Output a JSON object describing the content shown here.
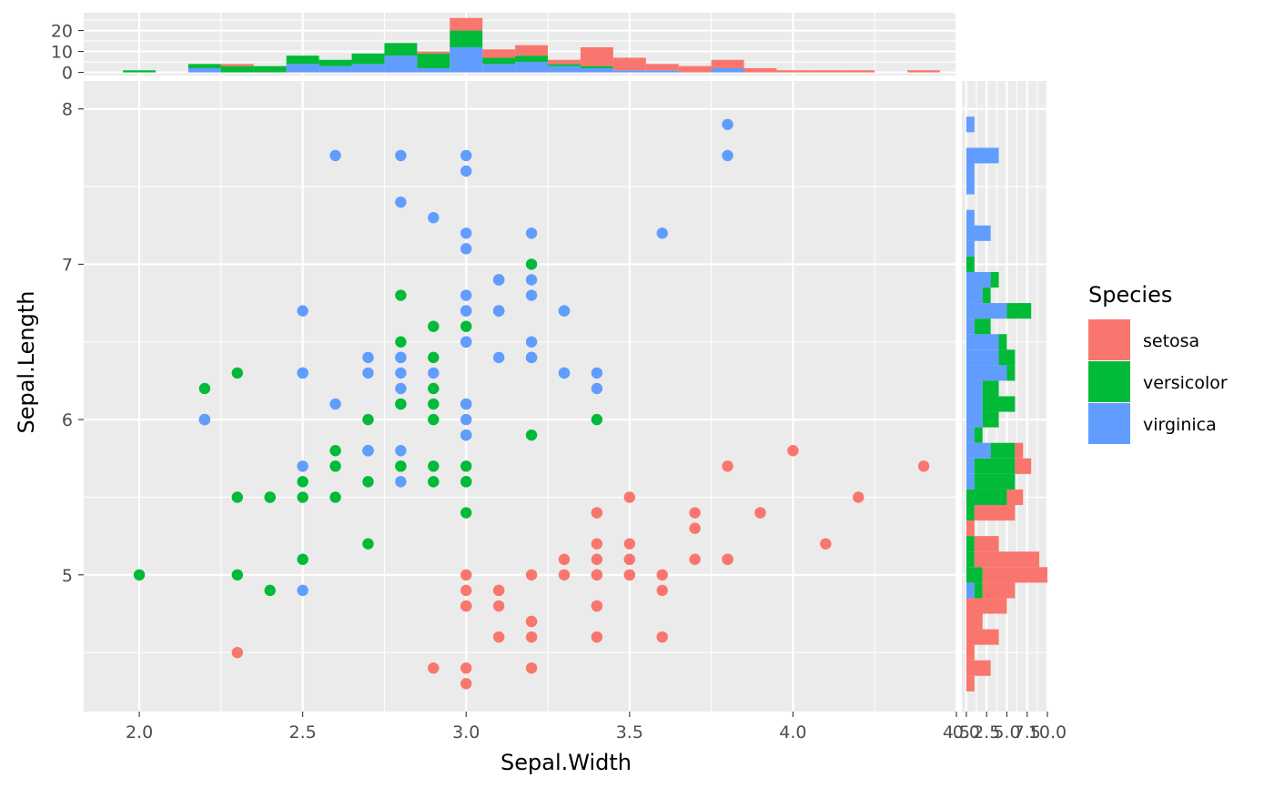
{
  "chart_data": [
    {
      "panel": "main",
      "type": "scatter",
      "xlabel": "Sepal.Width",
      "ylabel": "Sepal.Length",
      "xlim": [
        1.83,
        4.5
      ],
      "ylim": [
        4.12,
        8.18
      ],
      "x_ticks": [
        "2.0",
        "2.5",
        "3.0",
        "3.5",
        "4.0",
        "4.5"
      ],
      "x_tick_values": [
        2.0,
        2.5,
        3.0,
        3.5,
        4.0,
        4.5
      ],
      "y_ticks": [
        "5",
        "6",
        "7",
        "8"
      ],
      "y_tick_values": [
        5,
        6,
        7,
        8
      ],
      "grid": true,
      "series": [
        {
          "name": "setosa",
          "points": [
            [
              3.5,
              5.1
            ],
            [
              3.0,
              4.9
            ],
            [
              3.2,
              4.7
            ],
            [
              3.1,
              4.6
            ],
            [
              3.6,
              5.0
            ],
            [
              3.9,
              5.4
            ],
            [
              3.4,
              4.6
            ],
            [
              3.4,
              5.0
            ],
            [
              2.9,
              4.4
            ],
            [
              3.1,
              4.9
            ],
            [
              3.7,
              5.4
            ],
            [
              3.4,
              4.8
            ],
            [
              3.0,
              4.8
            ],
            [
              3.0,
              4.3
            ],
            [
              4.0,
              5.8
            ],
            [
              4.4,
              5.7
            ],
            [
              3.9,
              5.4
            ],
            [
              3.5,
              5.1
            ],
            [
              3.8,
              5.7
            ],
            [
              3.8,
              5.1
            ],
            [
              3.4,
              5.4
            ],
            [
              3.7,
              5.1
            ],
            [
              3.6,
              4.6
            ],
            [
              3.3,
              5.1
            ],
            [
              3.4,
              4.8
            ],
            [
              3.0,
              5.0
            ],
            [
              3.4,
              5.0
            ],
            [
              3.5,
              5.2
            ],
            [
              3.4,
              5.2
            ],
            [
              3.2,
              4.7
            ],
            [
              3.1,
              4.8
            ],
            [
              3.4,
              5.4
            ],
            [
              4.1,
              5.2
            ],
            [
              4.2,
              5.5
            ],
            [
              3.1,
              4.9
            ],
            [
              3.2,
              5.0
            ],
            [
              3.5,
              5.5
            ],
            [
              3.6,
              4.9
            ],
            [
              3.0,
              4.4
            ],
            [
              3.4,
              5.1
            ],
            [
              3.5,
              5.0
            ],
            [
              2.3,
              4.5
            ],
            [
              3.2,
              4.4
            ],
            [
              3.5,
              5.0
            ],
            [
              3.8,
              5.1
            ],
            [
              3.0,
              4.8
            ],
            [
              3.8,
              5.1
            ],
            [
              3.2,
              4.6
            ],
            [
              3.7,
              5.3
            ],
            [
              3.3,
              5.0
            ]
          ]
        },
        {
          "name": "versicolor",
          "points": [
            [
              3.2,
              7.0
            ],
            [
              3.2,
              6.4
            ],
            [
              3.1,
              6.9
            ],
            [
              2.3,
              5.5
            ],
            [
              2.8,
              6.5
            ],
            [
              2.8,
              5.7
            ],
            [
              3.3,
              6.3
            ],
            [
              2.4,
              4.9
            ],
            [
              2.9,
              6.6
            ],
            [
              2.7,
              5.2
            ],
            [
              2.0,
              5.0
            ],
            [
              3.0,
              5.9
            ],
            [
              2.2,
              6.0
            ],
            [
              2.9,
              6.1
            ],
            [
              2.9,
              5.6
            ],
            [
              3.1,
              6.7
            ],
            [
              3.0,
              5.6
            ],
            [
              2.7,
              5.8
            ],
            [
              2.2,
              6.2
            ],
            [
              2.5,
              5.6
            ],
            [
              3.2,
              5.9
            ],
            [
              2.8,
              6.1
            ],
            [
              2.5,
              6.3
            ],
            [
              2.8,
              6.1
            ],
            [
              2.9,
              6.4
            ],
            [
              3.0,
              6.6
            ],
            [
              2.8,
              6.8
            ],
            [
              3.0,
              6.7
            ],
            [
              2.9,
              6.0
            ],
            [
              2.6,
              5.7
            ],
            [
              2.4,
              5.5
            ],
            [
              2.4,
              5.5
            ],
            [
              2.7,
              5.8
            ],
            [
              2.7,
              6.0
            ],
            [
              3.0,
              5.4
            ],
            [
              3.4,
              6.0
            ],
            [
              3.1,
              6.7
            ],
            [
              2.3,
              6.3
            ],
            [
              3.0,
              5.6
            ],
            [
              2.5,
              5.5
            ],
            [
              2.6,
              5.5
            ],
            [
              3.0,
              6.1
            ],
            [
              2.6,
              5.8
            ],
            [
              2.3,
              5.0
            ],
            [
              2.7,
              5.6
            ],
            [
              3.0,
              5.7
            ],
            [
              2.9,
              5.7
            ],
            [
              2.9,
              6.2
            ],
            [
              2.5,
              5.1
            ],
            [
              2.8,
              5.7
            ]
          ]
        },
        {
          "name": "virginica",
          "points": [
            [
              3.3,
              6.3
            ],
            [
              2.7,
              5.8
            ],
            [
              3.0,
              7.1
            ],
            [
              2.9,
              6.3
            ],
            [
              3.0,
              6.5
            ],
            [
              3.0,
              7.6
            ],
            [
              2.5,
              4.9
            ],
            [
              2.9,
              7.3
            ],
            [
              2.5,
              6.7
            ],
            [
              3.6,
              7.2
            ],
            [
              3.2,
              6.5
            ],
            [
              2.7,
              6.4
            ],
            [
              3.0,
              6.8
            ],
            [
              2.5,
              5.7
            ],
            [
              2.8,
              5.8
            ],
            [
              3.2,
              6.4
            ],
            [
              3.0,
              6.5
            ],
            [
              3.8,
              7.7
            ],
            [
              2.6,
              7.7
            ],
            [
              2.2,
              6.0
            ],
            [
              3.2,
              6.9
            ],
            [
              2.8,
              5.6
            ],
            [
              2.8,
              7.7
            ],
            [
              2.7,
              6.3
            ],
            [
              3.3,
              6.7
            ],
            [
              3.2,
              7.2
            ],
            [
              2.8,
              6.2
            ],
            [
              3.0,
              6.1
            ],
            [
              2.8,
              6.4
            ],
            [
              3.0,
              7.2
            ],
            [
              2.8,
              7.4
            ],
            [
              3.8,
              7.9
            ],
            [
              2.8,
              6.4
            ],
            [
              2.8,
              6.3
            ],
            [
              2.6,
              6.1
            ],
            [
              3.0,
              7.7
            ],
            [
              3.4,
              6.3
            ],
            [
              3.1,
              6.4
            ],
            [
              3.0,
              6.0
            ],
            [
              3.1,
              6.9
            ],
            [
              3.1,
              6.7
            ],
            [
              3.1,
              6.9
            ],
            [
              2.7,
              5.8
            ],
            [
              3.2,
              6.8
            ],
            [
              3.3,
              6.7
            ],
            [
              3.0,
              6.7
            ],
            [
              2.5,
              6.3
            ],
            [
              3.0,
              6.5
            ],
            [
              3.4,
              6.2
            ],
            [
              3.0,
              5.9
            ]
          ]
        }
      ]
    },
    {
      "panel": "top-marginal",
      "type": "bar",
      "stacked": true,
      "bin_width": 0.1,
      "y_ticks": [
        "0",
        "10",
        "20"
      ],
      "y_tick_values": [
        0,
        10,
        20
      ],
      "ylim": [
        -1.5,
        28.5
      ],
      "bin_starts": [
        1.95,
        2.05,
        2.15,
        2.25,
        2.35,
        2.45,
        2.55,
        2.65,
        2.75,
        2.85,
        2.95,
        3.05,
        3.15,
        3.25,
        3.35,
        3.45,
        3.55,
        3.65,
        3.75,
        3.85,
        3.95,
        4.05,
        4.15,
        4.25,
        4.35
      ],
      "series": [
        {
          "name": "setosa",
          "values": [
            0,
            0,
            0,
            1,
            0,
            0,
            0,
            0,
            0,
            1,
            6,
            4,
            5,
            2,
            9,
            6,
            3,
            3,
            4,
            2,
            1,
            1,
            1,
            0,
            1
          ]
        },
        {
          "name": "versicolor",
          "values": [
            1,
            0,
            2,
            3,
            3,
            4,
            3,
            5,
            6,
            7,
            8,
            3,
            3,
            1,
            1,
            0,
            0,
            0,
            0,
            0,
            0,
            0,
            0,
            0,
            0
          ]
        },
        {
          "name": "virginica",
          "values": [
            0,
            0,
            2,
            0,
            0,
            4,
            3,
            4,
            8,
            2,
            12,
            4,
            5,
            3,
            2,
            1,
            1,
            0,
            2,
            0,
            0,
            0,
            0,
            0,
            0
          ]
        }
      ]
    },
    {
      "panel": "right-marginal",
      "type": "bar",
      "orientation": "horizontal",
      "stacked": true,
      "bin_width": 0.1,
      "x_ticks": [
        "0.0",
        "2.5",
        "5.0",
        "7.5",
        "10.0"
      ],
      "x_tick_values": [
        0,
        2.5,
        5.0,
        7.5,
        10.0
      ],
      "xlim": [
        -0.55,
        10.0
      ],
      "bin_starts": [
        4.25,
        4.35,
        4.45,
        4.55,
        4.65,
        4.75,
        4.85,
        4.95,
        5.05,
        5.15,
        5.25,
        5.35,
        5.45,
        5.55,
        5.65,
        5.75,
        5.85,
        5.95,
        6.05,
        6.15,
        6.25,
        6.35,
        6.45,
        6.55,
        6.65,
        6.75,
        6.85,
        6.95,
        7.05,
        7.15,
        7.25,
        7.35,
        7.45,
        7.55,
        7.65,
        7.75,
        7.85
      ],
      "series": [
        {
          "name": "setosa",
          "values": [
            1,
            3,
            1,
            4,
            2,
            5,
            4,
            8,
            8,
            3,
            1,
            5,
            2,
            0,
            2,
            1,
            0,
            0,
            0,
            0,
            0,
            0,
            0,
            0,
            0,
            0,
            0,
            0,
            0,
            0,
            0,
            0,
            0,
            0,
            0,
            0,
            0
          ]
        },
        {
          "name": "versicolor",
          "values": [
            0,
            0,
            0,
            0,
            0,
            0,
            1,
            2,
            1,
            1,
            0,
            1,
            5,
            5,
            5,
            3,
            1,
            2,
            4,
            2,
            1,
            2,
            1,
            2,
            3,
            1,
            1,
            1,
            0,
            0,
            0,
            0,
            0,
            0,
            0,
            0,
            0
          ]
        },
        {
          "name": "virginica",
          "values": [
            0,
            0,
            0,
            0,
            0,
            0,
            1,
            0,
            0,
            0,
            0,
            0,
            0,
            1,
            1,
            3,
            1,
            2,
            2,
            2,
            5,
            4,
            4,
            1,
            5,
            2,
            3,
            0,
            1,
            3,
            1,
            0,
            1,
            1,
            4,
            0,
            1
          ]
        }
      ]
    }
  ],
  "legend": {
    "title": "Species",
    "items": [
      {
        "label": "setosa",
        "color": "#F8766D"
      },
      {
        "label": "versicolor",
        "color": "#00BA38"
      },
      {
        "label": "virginica",
        "color": "#619CFF"
      }
    ]
  },
  "colors": {
    "setosa": "#F8766D",
    "versicolor": "#00BA38",
    "virginica": "#619CFF",
    "panel_background": "#EBEBEB",
    "grid": "#FFFFFF"
  }
}
